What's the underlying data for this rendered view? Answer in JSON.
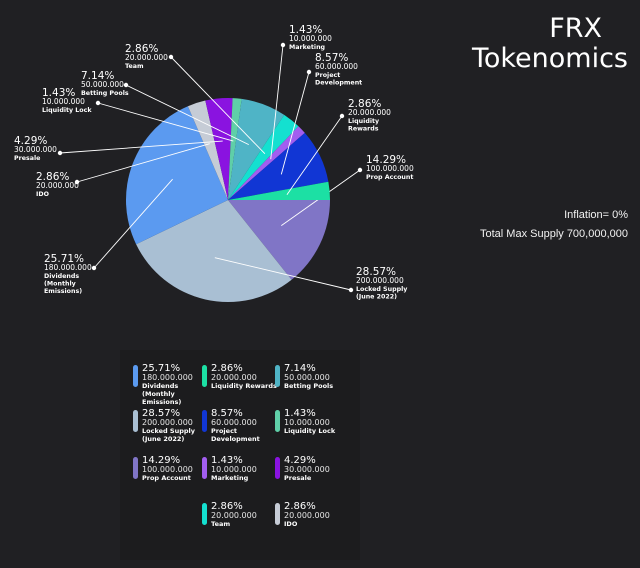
{
  "header": {
    "title_line1": "FRX",
    "title_line2": "Tokenomics"
  },
  "stats": {
    "inflation": "Inflation= 0%",
    "supply": "Total Max Supply 700,000,000"
  },
  "chart_data": {
    "type": "pie",
    "title": "FRX Tokenomics",
    "slices": [
      {
        "label": "Prop Account",
        "percent": "14.29%",
        "amount": "100.000.000",
        "value": 100000000,
        "color": "#8075c6"
      },
      {
        "label": "Locked Supply (June 2022)",
        "percent": "28.57%",
        "amount": "200.000.000",
        "value": 200000000,
        "color": "#a9bfd3"
      },
      {
        "label": "Dividends (Monthly Emissions)",
        "percent": "25.71%",
        "amount": "180.000.000",
        "value": 180000000,
        "color": "#5b9af0"
      },
      {
        "label": "IDO",
        "percent": "2.86%",
        "amount": "20.000.000",
        "value": 20000000,
        "color": "#c6ccd6"
      },
      {
        "label": "Presale",
        "percent": "4.29%",
        "amount": "30.000.000",
        "value": 30000000,
        "color": "#8a13e0"
      },
      {
        "label": "Liquidity Lock",
        "percent": "1.43%",
        "amount": "10.000.000",
        "value": 10000000,
        "color": "#5fcfa8"
      },
      {
        "label": "Betting Pools",
        "percent": "7.14%",
        "amount": "50.000.000",
        "value": 50000000,
        "color": "#4fb4c6"
      },
      {
        "label": "Team",
        "percent": "2.86%",
        "amount": "20.000.000",
        "value": 20000000,
        "color": "#14e0d0"
      },
      {
        "label": "Marketing",
        "percent": "1.43%",
        "amount": "10.000.000",
        "value": 10000000,
        "color": "#a25ef0"
      },
      {
        "label": "Project Development",
        "percent": "8.57%",
        "amount": "60.000.000",
        "value": 60000000,
        "color": "#1136d4"
      },
      {
        "label": "Liquidity Rewards",
        "percent": "2.86%",
        "amount": "20.000.000",
        "value": 20000000,
        "color": "#1ce0a4"
      }
    ]
  },
  "legend": [
    {
      "percent": "25.71%",
      "amount": "180.000.000",
      "name": "Dividends (Monthly Emissions)",
      "color": "#5b9af0"
    },
    {
      "percent": "2.86%",
      "amount": "20.000.000",
      "name": "Liquidity Rewards",
      "color": "#1ce0a4"
    },
    {
      "percent": "7.14%",
      "amount": "50.000.000",
      "name": "Betting Pools",
      "color": "#4fb4c6"
    },
    {
      "percent": "28.57%",
      "amount": "200.000.000",
      "name": "Locked Supply (June 2022)",
      "color": "#a9bfd3"
    },
    {
      "percent": "8.57%",
      "amount": "60.000.000",
      "name": "Project Development",
      "color": "#1136d4"
    },
    {
      "percent": "1.43%",
      "amount": "10.000.000",
      "name": "Liquidity Lock",
      "color": "#5fcfa8"
    },
    {
      "percent": "14.29%",
      "amount": "100.000.000",
      "name": "Prop Account",
      "color": "#8075c6"
    },
    {
      "percent": "1.43%",
      "amount": "10.000.000",
      "name": "Marketing",
      "color": "#a25ef0"
    },
    {
      "percent": "4.29%",
      "amount": "30.000.000",
      "name": "Presale",
      "color": "#8a13e0"
    },
    {
      "percent": "2.86%",
      "amount": "20.000.000",
      "name": "Team",
      "color": "#14e0d0"
    },
    {
      "percent": "2.86%",
      "amount": "20.000.000",
      "name": "IDO",
      "color": "#c6ccd6"
    }
  ]
}
